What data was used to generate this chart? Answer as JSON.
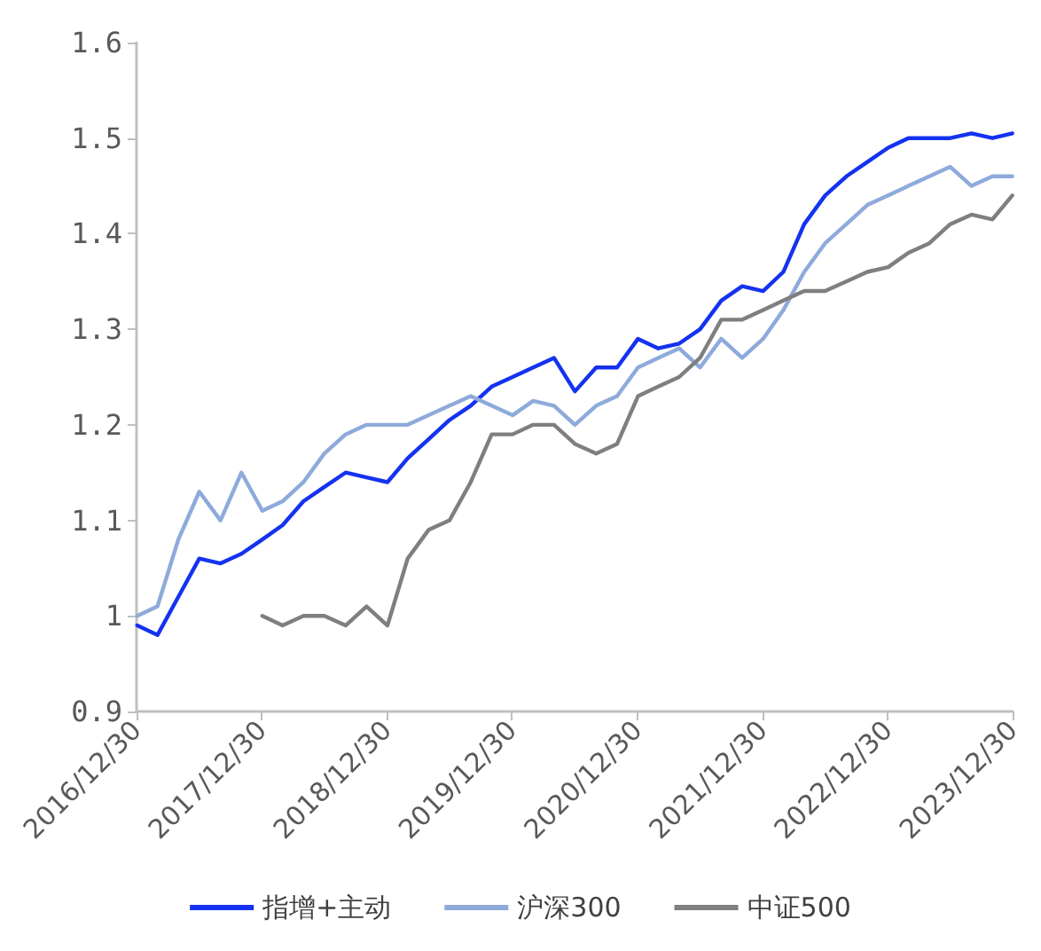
{
  "chart_data": {
    "type": "line",
    "x": [
      "2017-01-01",
      "2017-03-01",
      "2017-05-01",
      "2017-07-01",
      "2017-09-01",
      "2017-11-01",
      "2018-01-01",
      "2018-03-01",
      "2018-05-01",
      "2018-07-01",
      "2018-09-01",
      "2018-11-01",
      "2019-01-01",
      "2019-03-01",
      "2019-05-01",
      "2019-07-01",
      "2019-09-01",
      "2019-11-01",
      "2020-01-01",
      "2020-03-01",
      "2020-05-01",
      "2020-07-01",
      "2020-09-01",
      "2020-11-01",
      "2021-01-01",
      "2021-03-01",
      "2021-05-01",
      "2021-07-01",
      "2021-09-01",
      "2021-11-01",
      "2022-01-01",
      "2022-03-01",
      "2022-05-01",
      "2022-07-01",
      "2022-09-01",
      "2022-11-01",
      "2023-01-01",
      "2023-03-01",
      "2023-05-01",
      "2023-07-01",
      "2023-09-01",
      "2023-11-01",
      "2023-12-29"
    ],
    "series": [
      {
        "name": "指增+主动",
        "color": "#1432f0",
        "values": [
          0.99,
          0.98,
          1.02,
          1.06,
          1.055,
          1.065,
          1.08,
          1.095,
          1.12,
          1.135,
          1.15,
          1.145,
          1.14,
          1.165,
          1.185,
          1.205,
          1.22,
          1.24,
          1.25,
          1.26,
          1.27,
          1.235,
          1.26,
          1.26,
          1.29,
          1.28,
          1.285,
          1.3,
          1.33,
          1.345,
          1.34,
          1.36,
          1.41,
          1.44,
          1.46,
          1.475,
          1.49,
          1.5,
          1.5,
          1.5,
          1.505,
          1.5,
          1.505
        ]
      },
      {
        "name": "沪深300",
        "color": "#8eaadb",
        "values": [
          1.0,
          1.01,
          1.08,
          1.13,
          1.1,
          1.15,
          1.11,
          1.12,
          1.14,
          1.17,
          1.19,
          1.2,
          1.2,
          1.2,
          1.21,
          1.22,
          1.23,
          1.22,
          1.21,
          1.225,
          1.22,
          1.2,
          1.22,
          1.23,
          1.26,
          1.27,
          1.28,
          1.26,
          1.29,
          1.27,
          1.29,
          1.32,
          1.36,
          1.39,
          1.41,
          1.43,
          1.44,
          1.45,
          1.46,
          1.47,
          1.45,
          1.46,
          1.46
        ]
      },
      {
        "name": "中证500",
        "color": "#7f7f7f",
        "x": [
          "2018-01-01",
          "2018-03-01",
          "2018-05-01",
          "2018-07-01",
          "2018-09-01",
          "2018-11-01",
          "2019-01-01",
          "2019-03-01",
          "2019-05-01",
          "2019-07-01",
          "2019-09-01",
          "2019-11-01",
          "2020-01-01",
          "2020-03-01",
          "2020-05-01",
          "2020-07-01",
          "2020-09-01",
          "2020-11-01",
          "2021-01-01",
          "2021-03-01",
          "2021-05-01",
          "2021-07-01",
          "2021-09-01",
          "2021-11-01",
          "2022-01-01",
          "2022-03-01",
          "2022-05-01",
          "2022-07-01",
          "2022-09-01",
          "2022-11-01",
          "2023-01-01",
          "2023-03-01",
          "2023-05-01",
          "2023-07-01",
          "2023-09-01",
          "2023-11-01",
          "2023-12-29"
        ],
        "values": [
          1.0,
          0.99,
          1.0,
          1.0,
          0.99,
          1.01,
          0.99,
          1.06,
          1.09,
          1.1,
          1.14,
          1.19,
          1.19,
          1.2,
          1.2,
          1.18,
          1.17,
          1.18,
          1.23,
          1.24,
          1.25,
          1.27,
          1.31,
          1.31,
          1.32,
          1.33,
          1.34,
          1.34,
          1.35,
          1.36,
          1.365,
          1.38,
          1.39,
          1.41,
          1.42,
          1.415,
          1.44
        ]
      }
    ],
    "xlim": [
      "2016-12-30",
      "2023-12-30"
    ],
    "xticks": [
      {
        "value": "2016-12-30",
        "label": "2016/12/30"
      },
      {
        "value": "2017-12-30",
        "label": "2017/12/30"
      },
      {
        "value": "2018-12-30",
        "label": "2018/12/30"
      },
      {
        "value": "2019-12-30",
        "label": "2019/12/30"
      },
      {
        "value": "2020-12-30",
        "label": "2020/12/30"
      },
      {
        "value": "2021-12-30",
        "label": "2021/12/30"
      },
      {
        "value": "2022-12-30",
        "label": "2022/12/30"
      },
      {
        "value": "2023-12-30",
        "label": "2023/12/30"
      }
    ],
    "ylim": [
      0.9,
      1.6
    ],
    "yticks": [
      0.9,
      1,
      1.1,
      1.2,
      1.3,
      1.4,
      1.5,
      1.6
    ],
    "grid": false,
    "legend": "bottom",
    "marker": "none",
    "line_style": "solid"
  }
}
